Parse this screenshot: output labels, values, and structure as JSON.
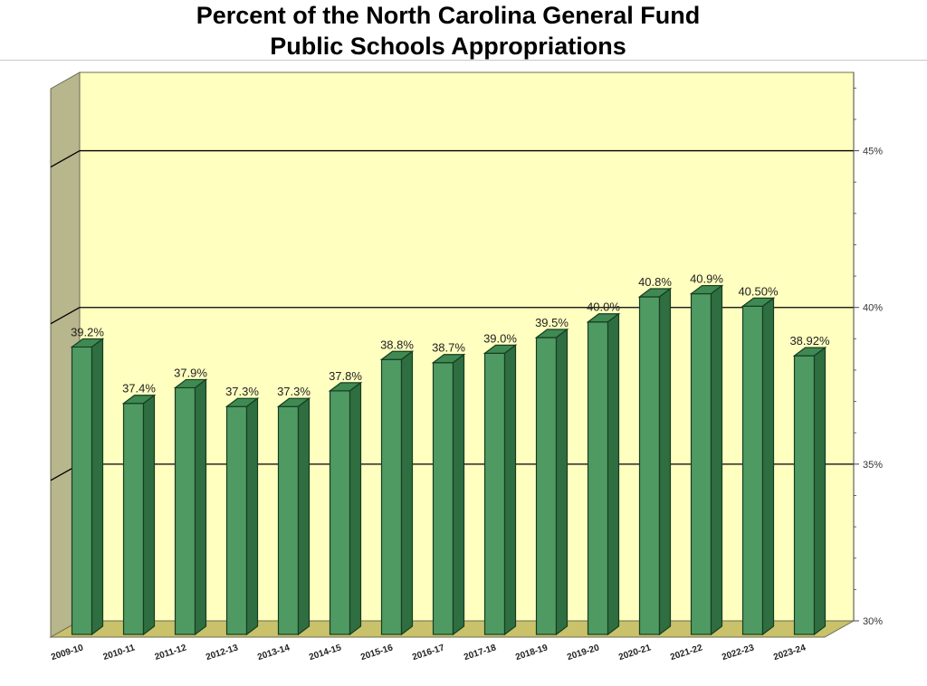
{
  "title": {
    "line1": "Percent of the North Carolina General Fund",
    "line2": "Public Schools Appropriations"
  },
  "colors": {
    "wall": "#ffffc0",
    "side_wall": "#b7b68c",
    "floor": "#c9c26a",
    "bar_front": "#4f9a63",
    "bar_top": "#3f8a52",
    "bar_side": "#2f6e40",
    "gridline": "#000000"
  },
  "chart_data": {
    "type": "bar",
    "title": "Percent of the North Carolina General Fund Public Schools Appropriations",
    "categories": [
      "2009-10",
      "2010-11",
      "2011-12",
      "2012-13",
      "2013-14",
      "2014-15",
      "2015-16",
      "2016-17",
      "2017-18",
      "2018-19",
      "2019-20",
      "2020-21",
      "2021-22",
      "2022-23",
      "2023-24"
    ],
    "values": [
      39.2,
      37.4,
      37.9,
      37.3,
      37.3,
      37.8,
      38.8,
      38.7,
      39.0,
      39.5,
      40.0,
      40.8,
      40.9,
      40.5,
      38.92
    ],
    "data_labels": [
      "39.2%",
      "37.4%",
      "37.9%",
      "37.3%",
      "37.3%",
      "37.8%",
      "38.8%",
      "38.7%",
      "39.0%",
      "39.5%",
      "40.0%",
      "40.8%",
      "40.9%",
      "40.50%",
      "38.92%"
    ],
    "y_ticks": [
      30,
      35,
      40,
      45
    ],
    "y_tick_labels": [
      "30%",
      "35%",
      "40%",
      "45%"
    ],
    "ylim": [
      30,
      47.5
    ],
    "y_axis_side": "right",
    "style": "3d",
    "grid": true,
    "legend": "none"
  }
}
